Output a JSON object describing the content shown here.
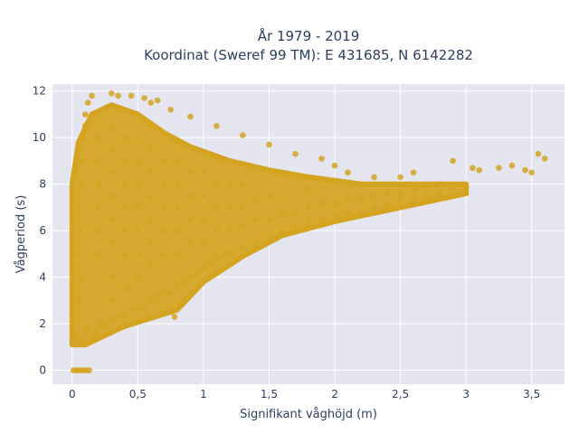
{
  "chart_data": {
    "type": "scatter",
    "title_lines": [
      "År 1979 - 2019",
      "Koordinat (Sweref 99 TM): E 431685, N 6142282"
    ],
    "xlabel": "Signifikant våghöjd (m)",
    "ylabel": "Vågperiod (s)",
    "xlim": [
      -0.15,
      3.75
    ],
    "ylim": [
      -0.6,
      12.3
    ],
    "xticks": [
      0,
      0.5,
      1,
      1.5,
      2,
      2.5,
      3,
      3.5
    ],
    "xtick_labels": [
      "0",
      "0,5",
      "1",
      "1,5",
      "2",
      "2,5",
      "3",
      "3,5"
    ],
    "yticks": [
      0,
      2,
      4,
      6,
      8,
      10,
      12
    ],
    "ytick_labels": [
      "0",
      "2",
      "4",
      "6",
      "8",
      "10",
      "12"
    ],
    "grid": true,
    "marker_color": "#d4a320",
    "plot_bg": "#e5e5ef",
    "points": [
      [
        0.01,
        0
      ],
      [
        0.03,
        0
      ],
      [
        0.05,
        0
      ],
      [
        0.07,
        0
      ],
      [
        0.09,
        0
      ],
      [
        0.11,
        0
      ],
      [
        0.13,
        0
      ],
      [
        0.02,
        1.5
      ],
      [
        0.05,
        1.3
      ],
      [
        0.08,
        1.2
      ],
      [
        0.1,
        1.6
      ],
      [
        0.12,
        1.8
      ],
      [
        0.15,
        1.5
      ],
      [
        0.18,
        1.7
      ],
      [
        0.22,
        2.0
      ],
      [
        0.25,
        1.9
      ],
      [
        0.3,
        2.2
      ],
      [
        0.35,
        2.3
      ],
      [
        0.4,
        2.4
      ],
      [
        0.45,
        2.6
      ],
      [
        0.5,
        2.7
      ],
      [
        0.55,
        2.8
      ],
      [
        0.6,
        3.0
      ],
      [
        0.65,
        3.2
      ],
      [
        0.7,
        3.4
      ],
      [
        0.75,
        3.3
      ],
      [
        0.8,
        3.6
      ],
      [
        0.85,
        3.8
      ],
      [
        0.9,
        4.0
      ],
      [
        0.95,
        4.2
      ],
      [
        1.0,
        4.4
      ],
      [
        1.05,
        4.6
      ],
      [
        1.1,
        4.8
      ],
      [
        1.15,
        5.0
      ],
      [
        1.2,
        5.0
      ],
      [
        1.3,
        5.3
      ],
      [
        1.4,
        5.5
      ],
      [
        1.5,
        5.7
      ],
      [
        1.6,
        6.0
      ],
      [
        1.7,
        6.2
      ],
      [
        1.8,
        6.4
      ],
      [
        1.9,
        6.5
      ],
      [
        2.0,
        6.6
      ],
      [
        2.1,
        6.8
      ],
      [
        2.2,
        6.9
      ],
      [
        2.3,
        7.0
      ],
      [
        2.4,
        7.1
      ],
      [
        2.5,
        7.3
      ],
      [
        2.6,
        7.4
      ],
      [
        2.7,
        7.5
      ],
      [
        2.8,
        7.6
      ],
      [
        2.9,
        7.8
      ],
      [
        3.0,
        7.9
      ],
      [
        0.75,
        2.5
      ],
      [
        0.78,
        2.3
      ],
      [
        0.05,
        3.0
      ],
      [
        0.06,
        4.0
      ],
      [
        0.05,
        5.0
      ],
      [
        0.06,
        6.0
      ],
      [
        0.05,
        7.0
      ],
      [
        0.06,
        8.0
      ],
      [
        0.07,
        9.0
      ],
      [
        0.06,
        9.5
      ],
      [
        0.08,
        10.0
      ],
      [
        0.1,
        10.5
      ],
      [
        0.1,
        11.0
      ],
      [
        0.12,
        11.5
      ],
      [
        0.15,
        11.8
      ],
      [
        0.3,
        11.9
      ],
      [
        0.35,
        11.8
      ],
      [
        0.45,
        11.8
      ],
      [
        0.55,
        11.7
      ],
      [
        0.65,
        11.6
      ],
      [
        0.6,
        11.5
      ],
      [
        0.75,
        11.2
      ],
      [
        0.9,
        10.9
      ],
      [
        1.1,
        10.5
      ],
      [
        1.3,
        10.1
      ],
      [
        1.5,
        9.7
      ],
      [
        1.7,
        9.3
      ],
      [
        1.9,
        9.1
      ],
      [
        2.0,
        8.8
      ],
      [
        2.1,
        8.5
      ],
      [
        2.3,
        8.3
      ],
      [
        2.5,
        8.3
      ],
      [
        2.6,
        8.5
      ],
      [
        2.9,
        9.0
      ],
      [
        3.05,
        8.7
      ],
      [
        3.1,
        8.6
      ],
      [
        3.25,
        8.7
      ],
      [
        3.35,
        8.8
      ],
      [
        3.45,
        8.6
      ],
      [
        3.5,
        8.5
      ],
      [
        3.55,
        9.3
      ],
      [
        3.6,
        9.1
      ],
      [
        0.2,
        5.0
      ],
      [
        0.2,
        6.0
      ],
      [
        0.2,
        7.0
      ],
      [
        0.2,
        8.0
      ],
      [
        0.2,
        9.0
      ],
      [
        0.2,
        10.0
      ],
      [
        0.3,
        3.0
      ],
      [
        0.3,
        4.0
      ],
      [
        0.3,
        5.5
      ],
      [
        0.3,
        6.5
      ],
      [
        0.3,
        7.5
      ],
      [
        0.3,
        8.5
      ],
      [
        0.3,
        9.5
      ],
      [
        0.3,
        10.5
      ],
      [
        0.4,
        3.5
      ],
      [
        0.4,
        5.0
      ],
      [
        0.4,
        6.0
      ],
      [
        0.4,
        7.0
      ],
      [
        0.4,
        8.0
      ],
      [
        0.4,
        9.0
      ],
      [
        0.4,
        10.0
      ],
      [
        0.5,
        4.0
      ],
      [
        0.5,
        5.0
      ],
      [
        0.5,
        6.0
      ],
      [
        0.5,
        7.0
      ],
      [
        0.5,
        8.0
      ],
      [
        0.5,
        9.0
      ],
      [
        0.5,
        10.0
      ],
      [
        0.6,
        4.5
      ],
      [
        0.6,
        5.5
      ],
      [
        0.6,
        6.5
      ],
      [
        0.6,
        7.5
      ],
      [
        0.6,
        8.5
      ],
      [
        0.6,
        9.5
      ],
      [
        0.7,
        5.0
      ],
      [
        0.7,
        6.0
      ],
      [
        0.7,
        7.0
      ],
      [
        0.7,
        8.0
      ],
      [
        0.7,
        9.0
      ],
      [
        0.8,
        5.0
      ],
      [
        0.8,
        6.0
      ],
      [
        0.8,
        7.0
      ],
      [
        0.8,
        8.0
      ],
      [
        0.8,
        9.0
      ],
      [
        0.9,
        5.5
      ],
      [
        0.9,
        6.5
      ],
      [
        0.9,
        7.5
      ],
      [
        0.9,
        8.5
      ],
      [
        1.0,
        5.5
      ],
      [
        1.0,
        6.5
      ],
      [
        1.0,
        7.5
      ],
      [
        1.0,
        8.5
      ],
      [
        1.1,
        6.0
      ],
      [
        1.1,
        7.0
      ],
      [
        1.1,
        8.0
      ],
      [
        1.2,
        6.0
      ],
      [
        1.2,
        7.0
      ],
      [
        1.2,
        8.0
      ],
      [
        1.3,
        6.2
      ],
      [
        1.3,
        7.0
      ],
      [
        1.3,
        8.0
      ],
      [
        1.4,
        6.5
      ],
      [
        1.4,
        7.3
      ],
      [
        1.5,
        6.5
      ],
      [
        1.5,
        7.5
      ],
      [
        1.6,
        6.8
      ],
      [
        1.6,
        7.5
      ],
      [
        1.7,
        6.8
      ],
      [
        1.8,
        7.0
      ],
      [
        1.8,
        7.8
      ],
      [
        1.9,
        7.2
      ],
      [
        2.0,
        7.2
      ],
      [
        2.1,
        7.3
      ],
      [
        2.2,
        7.4
      ],
      [
        2.3,
        7.5
      ],
      [
        2.4,
        7.6
      ],
      [
        2.5,
        7.6
      ],
      [
        2.6,
        7.8
      ],
      [
        2.7,
        7.9
      ],
      [
        2.8,
        8.0
      ]
    ]
  }
}
